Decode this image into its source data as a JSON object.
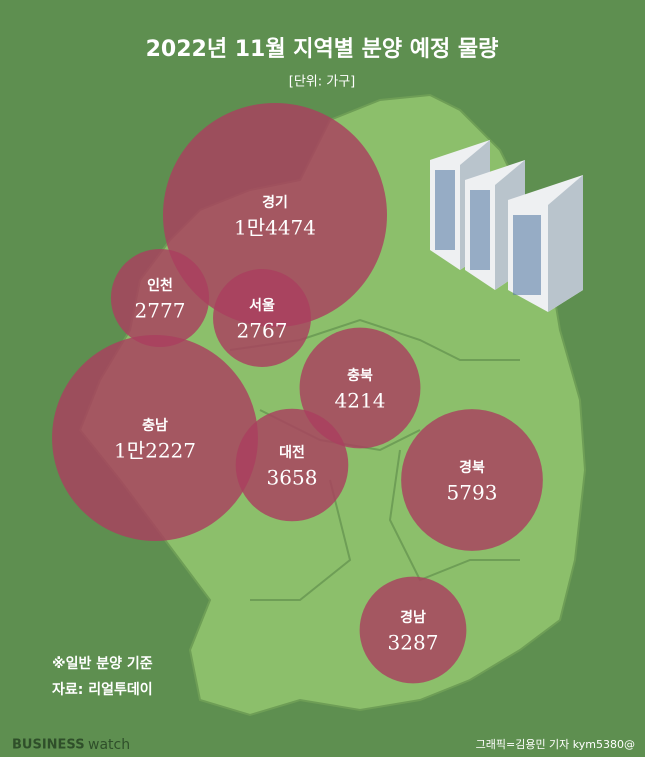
{
  "chart_data": {
    "type": "bubble-map",
    "title": "2022년 11월 지역별 분양 예정 물량",
    "subtitle": "[단위: 가구]",
    "categories": [
      "경기",
      "인천",
      "서울",
      "충남",
      "충북",
      "대전",
      "경북",
      "경남"
    ],
    "values": [
      14474,
      2777,
      2767,
      12227,
      4214,
      3658,
      5793,
      3287
    ],
    "value_labels": [
      "1만4474",
      "2777",
      "2767",
      "1만2227",
      "4214",
      "3658",
      "5793",
      "3287"
    ],
    "color": "#a9405f",
    "notes": [
      "※일반 분양 기준",
      "자료: 리얼투데이"
    ],
    "brand": [
      "BUSINESS",
      "watch"
    ],
    "credit": "그래픽=김용민 기자 kym5380@"
  }
}
